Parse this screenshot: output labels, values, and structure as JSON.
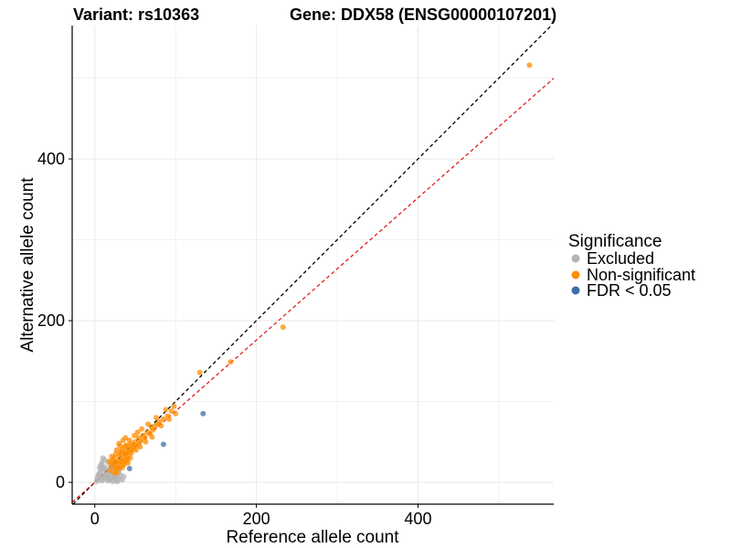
{
  "chart_data": {
    "type": "scatter",
    "title_left": "Variant: rs10363",
    "title_right": "Gene: DDX58 (ENSG00000107201)",
    "xlabel": "Reference allele count",
    "ylabel": "Alternative allele count",
    "xlim": [
      -28,
      568
    ],
    "ylim": [
      -27,
      565
    ],
    "x_ticks": [
      0,
      200,
      400
    ],
    "y_ticks": [
      0,
      200,
      400
    ],
    "grid": true,
    "reference_lines": [
      {
        "name": "identity",
        "slope": 1.0,
        "intercept": 0,
        "color": "#000000",
        "dash": true
      },
      {
        "name": "fit",
        "slope": 0.88,
        "intercept": 0,
        "color": "#e41a1c",
        "dash": true
      }
    ],
    "legend": {
      "title": "Significance",
      "position": "right",
      "entries": [
        {
          "label": "Excluded",
          "color": "#b3b3b3"
        },
        {
          "label": "Non-significant",
          "color": "#ff8c00"
        },
        {
          "label": "FDR < 0.05",
          "color": "#3e6fa8"
        }
      ]
    },
    "series": [
      {
        "name": "Excluded",
        "color": "#b3b3b3",
        "points": [
          [
            2,
            1
          ],
          [
            3,
            5
          ],
          [
            4,
            8
          ],
          [
            5,
            3
          ],
          [
            6,
            12
          ],
          [
            7,
            6
          ],
          [
            8,
            15
          ],
          [
            9,
            2
          ],
          [
            10,
            20
          ],
          [
            11,
            9
          ],
          [
            12,
            4
          ],
          [
            13,
            14
          ],
          [
            14,
            18
          ],
          [
            15,
            7
          ],
          [
            16,
            25
          ],
          [
            17,
            11
          ],
          [
            18,
            3
          ],
          [
            19,
            16
          ],
          [
            20,
            22
          ],
          [
            21,
            8
          ],
          [
            22,
            13
          ],
          [
            23,
            5
          ],
          [
            24,
            19
          ],
          [
            25,
            10
          ],
          [
            26,
            2
          ],
          [
            27,
            17
          ],
          [
            28,
            6
          ],
          [
            29,
            12
          ],
          [
            30,
            4
          ],
          [
            32,
            9
          ],
          [
            34,
            3
          ],
          [
            36,
            7
          ],
          [
            12,
            28
          ],
          [
            8,
            22
          ],
          [
            6,
            18
          ],
          [
            10,
            30
          ],
          [
            14,
            8
          ],
          [
            16,
            2
          ],
          [
            18,
            10
          ],
          [
            20,
            5
          ],
          [
            22,
            1
          ],
          [
            24,
            6
          ],
          [
            26,
            9
          ],
          [
            28,
            1
          ],
          [
            30,
            15
          ],
          [
            5,
            10
          ],
          [
            7,
            20
          ],
          [
            9,
            25
          ],
          [
            11,
            17
          ],
          [
            13,
            6
          ]
        ]
      },
      {
        "name": "Non-significant",
        "color": "#ff8c00",
        "points": [
          [
            20,
            22
          ],
          [
            22,
            28
          ],
          [
            24,
            30
          ],
          [
            25,
            18
          ],
          [
            26,
            35
          ],
          [
            28,
            26
          ],
          [
            30,
            33
          ],
          [
            31,
            20
          ],
          [
            32,
            38
          ],
          [
            33,
            28
          ],
          [
            34,
            41
          ],
          [
            35,
            24
          ],
          [
            36,
            30
          ],
          [
            37,
            44
          ],
          [
            38,
            35
          ],
          [
            39,
            27
          ],
          [
            40,
            40
          ],
          [
            41,
            32
          ],
          [
            42,
            45
          ],
          [
            43,
            38
          ],
          [
            44,
            30
          ],
          [
            45,
            48
          ],
          [
            46,
            40
          ],
          [
            48,
            42
          ],
          [
            50,
            50
          ],
          [
            52,
            46
          ],
          [
            54,
            55
          ],
          [
            55,
            48
          ],
          [
            57,
            52
          ],
          [
            60,
            58
          ],
          [
            62,
            55
          ],
          [
            65,
            62
          ],
          [
            68,
            60
          ],
          [
            70,
            68
          ],
          [
            72,
            65
          ],
          [
            75,
            70
          ],
          [
            78,
            72
          ],
          [
            80,
            75
          ],
          [
            85,
            78
          ],
          [
            90,
            82
          ],
          [
            95,
            88
          ],
          [
            100,
            85
          ],
          [
            18,
            26
          ],
          [
            19,
            15
          ],
          [
            21,
            32
          ],
          [
            23,
            24
          ],
          [
            27,
            40
          ],
          [
            29,
            17
          ],
          [
            31,
            45
          ],
          [
            33,
            35
          ],
          [
            35,
            52
          ],
          [
            36,
            22
          ],
          [
            38,
            55
          ],
          [
            40,
            28
          ],
          [
            27,
            12
          ],
          [
            29,
            24
          ],
          [
            24,
            12
          ],
          [
            26,
            20
          ],
          [
            30,
            48
          ],
          [
            32,
            26
          ],
          [
            34,
            18
          ],
          [
            37,
            36
          ],
          [
            39,
            46
          ],
          [
            41,
            24
          ],
          [
            43,
            52
          ],
          [
            45,
            36
          ],
          [
            47,
            44
          ],
          [
            49,
            58
          ],
          [
            51,
            40
          ],
          [
            53,
            62
          ],
          [
            56,
            44
          ],
          [
            58,
            66
          ],
          [
            63,
            50
          ],
          [
            66,
            72
          ],
          [
            71,
            56
          ],
          [
            76,
            80
          ],
          [
            82,
            70
          ],
          [
            88,
            90
          ],
          [
            92,
            78
          ],
          [
            98,
            94
          ],
          [
            130,
            136
          ],
          [
            168,
            149
          ],
          [
            233,
            192
          ],
          [
            538,
            516
          ]
        ]
      },
      {
        "name": "FDR < 0.05",
        "color": "#3e6fa8",
        "points": [
          [
            134,
            85
          ],
          [
            85,
            47
          ],
          [
            43,
            17
          ]
        ]
      }
    ]
  }
}
